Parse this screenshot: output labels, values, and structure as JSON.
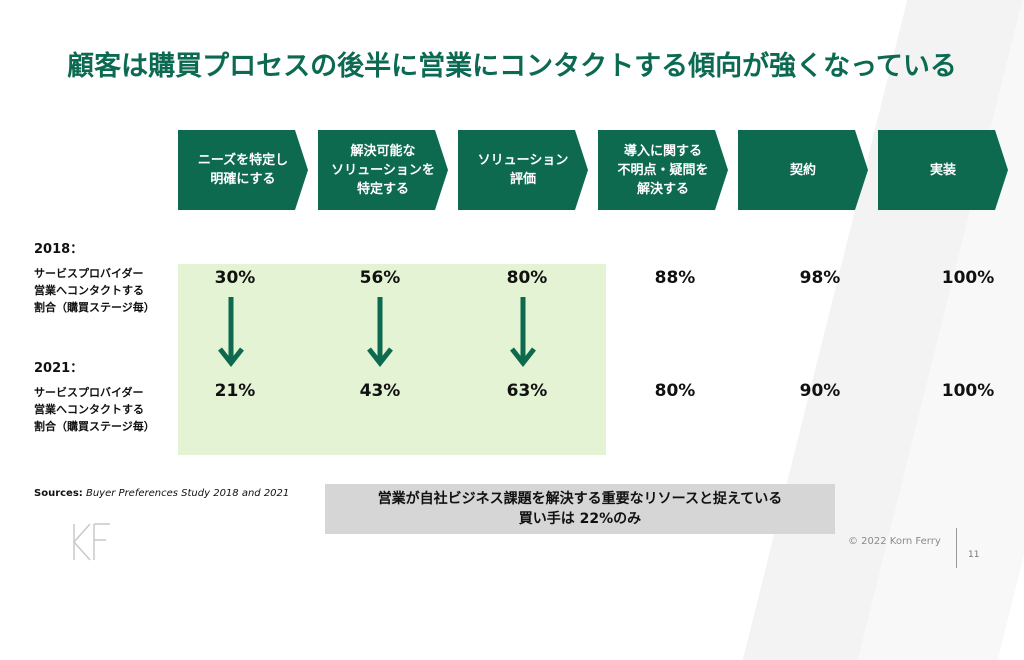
{
  "title": "顧客は購買プロセスの後半に営業にコンタクトする傾向が強くなっている",
  "stages": [
    "ニーズを特定し\n明確にする",
    "解決可能な\nソリューションを\n特定する",
    "ソリューション\n評価",
    "導入に関する\n不明点・疑問を\n解決する",
    "契約",
    "実装"
  ],
  "rows": [
    {
      "year": "2018：",
      "desc": "サービスプロバイダー\n営業へコンタクトする\n割合（購買ステージ毎）",
      "values": [
        "30%",
        "56%",
        "80%",
        "88%",
        "98%",
        "100%"
      ]
    },
    {
      "year": "2021：",
      "desc": "サービスプロバイダー\n営業へコンタクトする\n割合（購買ステージ毎）",
      "values": [
        "21%",
        "43%",
        "63%",
        "80%",
        "90%",
        "100%"
      ]
    }
  ],
  "sources": {
    "label": "Sources:",
    "text": "Buyer Preferences Study 2018 and 2021"
  },
  "callout": {
    "line1": "営業が自社ビジネス課題を解決する重要なリソースと捉えている",
    "line2": "買い手は 22%のみ"
  },
  "footer": {
    "copyright": "© 2022 Korn Ferry",
    "page_number": "11"
  },
  "colors": {
    "brand_green": "#0d6a4f",
    "title_green": "#0d6a52",
    "highlight": "#e3f3d3",
    "callout_bg": "#d6d6d6"
  }
}
